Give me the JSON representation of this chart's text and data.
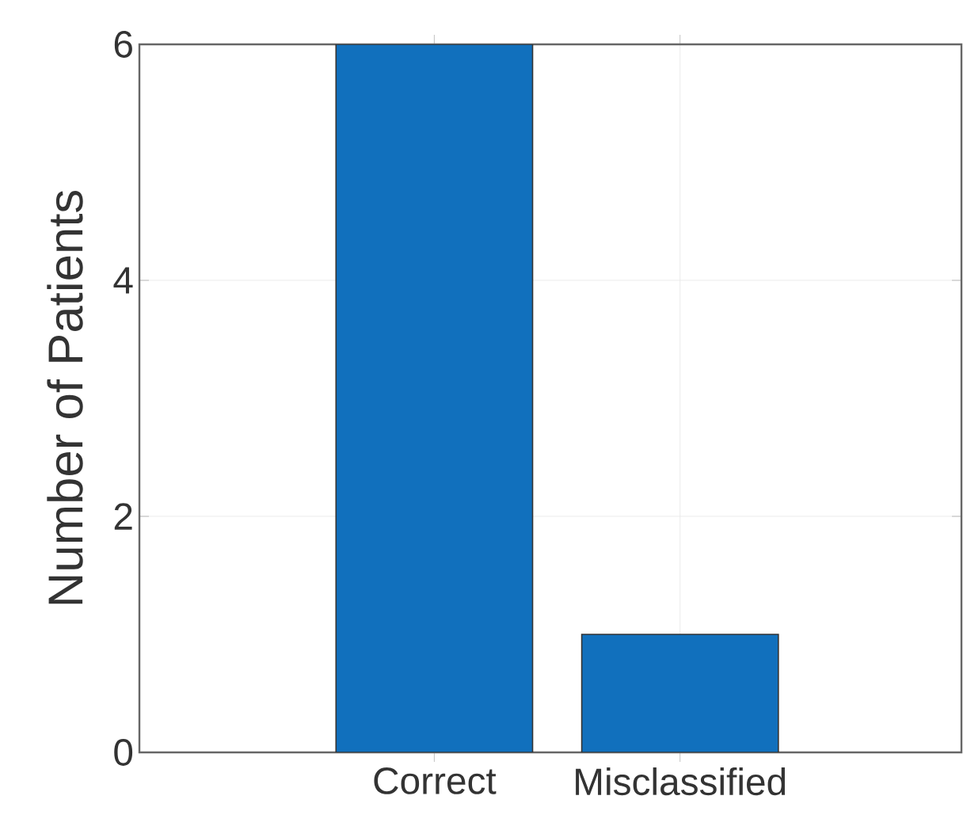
{
  "chart_data": {
    "type": "bar",
    "ylabel": "Number of Patients",
    "categories": [
      "Correct",
      "Misclassified"
    ],
    "values": [
      6,
      1
    ],
    "color": "#1170bd",
    "ylim": [
      0,
      6
    ],
    "yticks": [
      0,
      2,
      4,
      6
    ],
    "grid": true
  }
}
